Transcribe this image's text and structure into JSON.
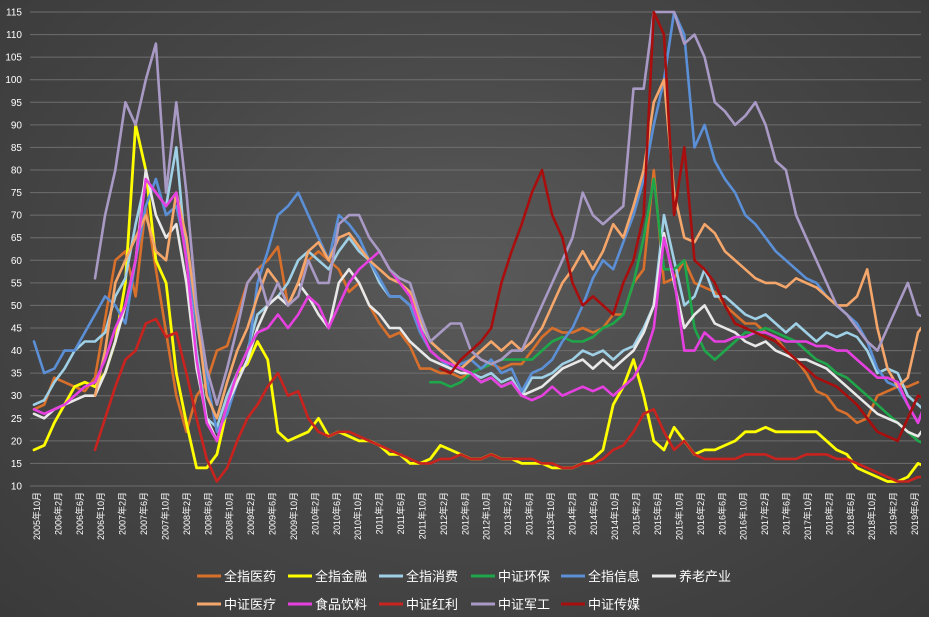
{
  "chart_data": {
    "type": "line",
    "title": "",
    "xlabel": "",
    "ylabel": "",
    "ylim": [
      10,
      115
    ],
    "yticks": [
      10,
      15,
      20,
      25,
      30,
      35,
      40,
      45,
      50,
      55,
      60,
      65,
      70,
      75,
      80,
      85,
      90,
      95,
      100,
      105,
      110,
      115
    ],
    "grid": true,
    "legend_position": "bottom",
    "x_tick_labels": [
      "2005年10月",
      "2006年2月",
      "2006年6月",
      "2006年10月",
      "2007年2月",
      "2007年6月",
      "2007年10月",
      "2008年2月",
      "2008年6月",
      "2008年10月",
      "2009年2月",
      "2009年6月",
      "2009年10月",
      "2010年2月",
      "2010年6月",
      "2010年10月",
      "2011年2月",
      "2011年6月",
      "2011年10月",
      "2012年2月",
      "2012年6月",
      "2012年10月",
      "2013年2月",
      "2013年6月",
      "2013年10月",
      "2014年2月",
      "2014年6月",
      "2014年10月",
      "2015年2月",
      "2015年6月",
      "2015年10月",
      "2016年2月",
      "2016年6月",
      "2016年10月",
      "2017年2月",
      "2017年6月",
      "2017年10月",
      "2018年2月",
      "2018年6月",
      "2018年10月",
      "2019年2月",
      "2019年6月"
    ],
    "series": [
      {
        "name": "全指医药",
        "color": "#d8702b",
        "width": 2.6,
        "values": [
          27,
          28,
          34,
          33,
          32,
          31,
          34,
          47,
          60,
          62,
          52,
          72,
          58,
          44,
          30,
          22,
          30,
          33,
          40,
          41,
          48,
          55,
          58,
          60,
          63,
          50,
          55,
          60,
          62,
          60,
          58,
          53,
          55,
          50,
          46,
          43,
          44,
          41,
          36,
          36,
          35,
          35,
          34,
          35,
          36,
          37,
          36,
          37,
          37,
          40,
          43,
          45,
          44,
          44,
          45,
          44,
          45,
          48,
          48,
          55,
          58,
          80,
          55,
          56,
          60,
          55,
          54,
          53,
          50,
          48,
          46,
          46,
          44,
          43,
          40,
          38,
          35,
          31,
          30,
          27,
          26,
          24,
          25,
          30,
          31,
          32,
          32,
          33
        ]
      },
      {
        "name": "全指金融",
        "color": "#ffff00",
        "width": 2.8,
        "values": [
          18,
          19,
          24,
          28,
          32,
          33,
          32,
          35,
          42,
          55,
          90,
          80,
          60,
          55,
          35,
          24,
          14,
          14,
          17,
          27,
          35,
          37,
          42,
          38,
          22,
          20,
          21,
          22,
          25,
          21,
          22,
          21,
          20,
          20,
          19,
          17,
          17,
          15,
          15,
          16,
          19,
          18,
          17,
          16,
          16,
          17,
          16,
          16,
          15,
          15,
          15,
          14,
          14,
          14,
          15,
          16,
          18,
          28,
          32,
          38,
          30,
          20,
          18,
          23,
          20,
          17,
          18,
          18,
          19,
          20,
          22,
          22,
          23,
          22,
          22,
          22,
          22,
          22,
          20,
          18,
          17,
          14,
          13,
          12,
          11,
          11,
          12,
          15,
          14,
          14,
          14,
          13
        ]
      },
      {
        "name": "全指消费",
        "color": "#9fd0e6",
        "width": 2.6,
        "values": [
          28,
          29,
          33,
          36,
          40,
          42,
          42,
          44,
          52,
          56,
          68,
          78,
          75,
          72,
          85,
          60,
          40,
          25,
          23,
          30,
          35,
          40,
          48,
          50,
          52,
          55,
          60,
          62,
          60,
          58,
          62,
          65,
          62,
          60,
          55,
          52,
          52,
          50,
          46,
          42,
          40,
          38,
          36,
          35,
          34,
          35,
          33,
          34,
          30,
          34,
          34,
          35,
          37,
          38,
          40,
          39,
          40,
          38,
          40,
          41,
          45,
          50,
          70,
          60,
          50,
          52,
          58,
          52,
          52,
          50,
          48,
          47,
          48,
          46,
          44,
          46,
          44,
          42,
          44,
          43,
          44,
          43,
          40,
          35,
          36,
          35,
          30,
          28,
          26,
          30,
          33,
          34,
          33,
          32
        ]
      },
      {
        "name": "中证环保",
        "color": "#1fa64a",
        "width": 2.6,
        "values": [
          null,
          null,
          null,
          null,
          null,
          null,
          null,
          null,
          null,
          null,
          null,
          null,
          null,
          null,
          null,
          null,
          null,
          null,
          null,
          null,
          null,
          null,
          null,
          null,
          null,
          null,
          null,
          null,
          null,
          null,
          null,
          null,
          null,
          null,
          null,
          null,
          null,
          null,
          null,
          33,
          33,
          32,
          33,
          35,
          36,
          37,
          38,
          38,
          38,
          38,
          40,
          42,
          43,
          42,
          42,
          43,
          45,
          46,
          48,
          55,
          65,
          78,
          58,
          58,
          60,
          45,
          40,
          38,
          40,
          42,
          44,
          44,
          45,
          44,
          43,
          42,
          40,
          38,
          37,
          35,
          34,
          32,
          30,
          28,
          26,
          24,
          22,
          20,
          19,
          22,
          27,
          24,
          24,
          23
        ]
      },
      {
        "name": "全指信息",
        "color": "#5b8fd6",
        "width": 2.6,
        "values": [
          42,
          35,
          36,
          40,
          40,
          44,
          48,
          52,
          50,
          46,
          60,
          72,
          78,
          70,
          72,
          62,
          46,
          34,
          22,
          26,
          33,
          38,
          55,
          62,
          70,
          72,
          75,
          70,
          65,
          60,
          70,
          68,
          65,
          60,
          56,
          52,
          52,
          50,
          44,
          40,
          38,
          36,
          37,
          38,
          36,
          38,
          35,
          36,
          31,
          35,
          36,
          38,
          42,
          45,
          50,
          56,
          60,
          58,
          64,
          70,
          78,
          90,
          100,
          115,
          110,
          85,
          90,
          82,
          78,
          75,
          70,
          68,
          65,
          62,
          60,
          58,
          56,
          55,
          52,
          50,
          48,
          46,
          42,
          36,
          33,
          32,
          28,
          24,
          30,
          44,
          46,
          44,
          44,
          43
        ]
      },
      {
        "name": "养老产业",
        "color": "#e8e8e8",
        "width": 2.6,
        "values": [
          26,
          25,
          27,
          28,
          29,
          30,
          30,
          35,
          42,
          50,
          60,
          80,
          70,
          65,
          68,
          55,
          36,
          25,
          20,
          28,
          33,
          38,
          45,
          50,
          52,
          50,
          55,
          52,
          48,
          45,
          55,
          58,
          55,
          50,
          48,
          45,
          45,
          42,
          40,
          38,
          37,
          36,
          35,
          35,
          33,
          34,
          32,
          33,
          30,
          31,
          32,
          34,
          36,
          37,
          38,
          36,
          38,
          36,
          38,
          40,
          44,
          50,
          66,
          55,
          45,
          48,
          50,
          46,
          45,
          44,
          42,
          41,
          42,
          40,
          39,
          38,
          38,
          37,
          36,
          34,
          32,
          30,
          28,
          26,
          25,
          24,
          22,
          21,
          24,
          30,
          31,
          30,
          30,
          29
        ]
      },
      {
        "name": "中证医疗",
        "color": "#f5a66a",
        "width": 2.6,
        "values": [
          null,
          null,
          null,
          null,
          null,
          null,
          30,
          40,
          55,
          60,
          65,
          70,
          62,
          60,
          75,
          65,
          48,
          30,
          25,
          33,
          40,
          45,
          52,
          58,
          55,
          50,
          55,
          62,
          64,
          60,
          65,
          66,
          63,
          60,
          58,
          56,
          55,
          53,
          47,
          42,
          40,
          38,
          36,
          38,
          40,
          42,
          40,
          42,
          40,
          42,
          45,
          50,
          55,
          58,
          62,
          58,
          62,
          68,
          65,
          72,
          80,
          95,
          100,
          75,
          65,
          64,
          68,
          66,
          62,
          60,
          58,
          56,
          55,
          55,
          54,
          56,
          55,
          54,
          52,
          50,
          50,
          52,
          58,
          45,
          36,
          32,
          34,
          44,
          47,
          40,
          41,
          41
        ]
      },
      {
        "name": "食品饮料",
        "color": "#e640e0",
        "width": 2.6,
        "values": [
          27,
          26,
          27,
          28,
          30,
          32,
          33,
          38,
          45,
          50,
          60,
          78,
          75,
          72,
          75,
          60,
          38,
          24,
          20,
          28,
          35,
          40,
          44,
          45,
          48,
          45,
          48,
          52,
          50,
          45,
          50,
          55,
          58,
          60,
          62,
          58,
          55,
          52,
          45,
          40,
          38,
          37,
          36,
          35,
          33,
          34,
          32,
          33,
          30,
          29,
          30,
          32,
          30,
          31,
          32,
          31,
          32,
          30,
          32,
          34,
          38,
          45,
          65,
          56,
          40,
          40,
          44,
          42,
          42,
          43,
          43,
          44,
          44,
          43,
          42,
          42,
          42,
          41,
          41,
          40,
          40,
          38,
          36,
          34,
          34,
          33,
          28,
          24,
          30,
          33,
          33,
          33,
          32,
          31
        ]
      },
      {
        "name": "中证红利",
        "color": "#c8231e",
        "width": 2.6,
        "values": [
          null,
          null,
          null,
          null,
          null,
          null,
          18,
          25,
          32,
          38,
          40,
          46,
          47,
          43,
          44,
          35,
          25,
          16,
          11,
          14,
          20,
          25,
          28,
          32,
          35,
          30,
          31,
          25,
          22,
          21,
          22,
          22,
          21,
          20,
          19,
          18,
          17,
          16,
          15,
          15,
          16,
          16,
          17,
          16,
          16,
          17,
          16,
          16,
          16,
          16,
          15,
          15,
          14,
          14,
          15,
          15,
          16,
          18,
          19,
          22,
          26,
          27,
          22,
          18,
          20,
          17,
          16,
          16,
          16,
          16,
          17,
          17,
          17,
          16,
          16,
          16,
          17,
          17,
          17,
          16,
          16,
          15,
          14,
          13,
          12,
          11,
          11,
          12,
          12,
          11,
          11,
          11
        ]
      },
      {
        "name": "中证军工",
        "color": "#a99ac5",
        "width": 2.6,
        "values": [
          null,
          null,
          null,
          null,
          null,
          null,
          56,
          70,
          80,
          95,
          90,
          100,
          108,
          75,
          95,
          75,
          50,
          36,
          28,
          36,
          45,
          55,
          58,
          50,
          55,
          50,
          52,
          60,
          55,
          55,
          68,
          70,
          70,
          65,
          62,
          58,
          56,
          55,
          48,
          42,
          44,
          46,
          46,
          40,
          38,
          37,
          38,
          40,
          40,
          45,
          50,
          55,
          60,
          65,
          75,
          70,
          68,
          70,
          72,
          98,
          98,
          115,
          115,
          115,
          108,
          110,
          105,
          95,
          93,
          90,
          92,
          95,
          90,
          82,
          80,
          70,
          65,
          60,
          55,
          50,
          48,
          45,
          42,
          40,
          45,
          50,
          55,
          48,
          47,
          50,
          51,
          51
        ]
      },
      {
        "name": "中证传媒",
        "color": "#a80e0e",
        "width": 2.6,
        "values": [
          null,
          null,
          null,
          null,
          null,
          null,
          null,
          null,
          null,
          null,
          null,
          null,
          null,
          null,
          null,
          null,
          null,
          null,
          null,
          null,
          null,
          null,
          null,
          null,
          null,
          null,
          null,
          null,
          null,
          null,
          null,
          null,
          null,
          null,
          null,
          null,
          null,
          null,
          null,
          null,
          36,
          35,
          38,
          40,
          42,
          45,
          55,
          62,
          68,
          75,
          80,
          70,
          65,
          55,
          50,
          52,
          50,
          48,
          55,
          60,
          70,
          115,
          110,
          70,
          85,
          60,
          58,
          55,
          50,
          46,
          45,
          44,
          43,
          42,
          40,
          38,
          36,
          34,
          33,
          32,
          30,
          28,
          25,
          22,
          21,
          20,
          25,
          30,
          29,
          29
        ]
      }
    ]
  }
}
